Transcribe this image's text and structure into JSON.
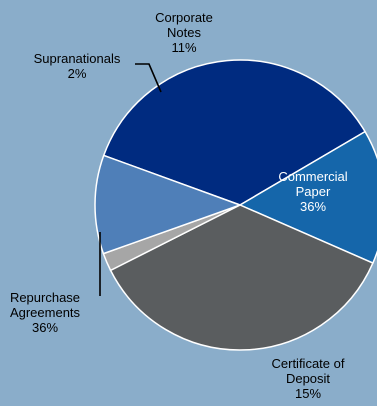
{
  "colors": {
    "background": "#8aadca",
    "slice_border": "#ffffff",
    "leader_line": "#000000"
  },
  "chart_data": {
    "type": "pie",
    "title": "",
    "slices": [
      {
        "label_lines": [
          "Commercial",
          "Paper",
          "36%"
        ],
        "value": 36,
        "color": "#002b80",
        "label_color": "#ffffff"
      },
      {
        "label_lines": [
          "Certificate of",
          "Deposit",
          "15%"
        ],
        "value": 15,
        "color": "#1566aa",
        "label_color": "#000000"
      },
      {
        "label_lines": [
          "Repurchase",
          "Agreements",
          "36%"
        ],
        "value": 36,
        "color": "#5a5d5f",
        "label_color": "#000000"
      },
      {
        "label_lines": [
          "Supranationals",
          "2%"
        ],
        "value": 2,
        "color": "#a6a6a6",
        "label_color": "#000000"
      },
      {
        "label_lines": [
          "Corporate",
          "Notes",
          "11%"
        ],
        "value": 11,
        "color": "#4f7fb8",
        "label_color": "#000000"
      }
    ]
  }
}
